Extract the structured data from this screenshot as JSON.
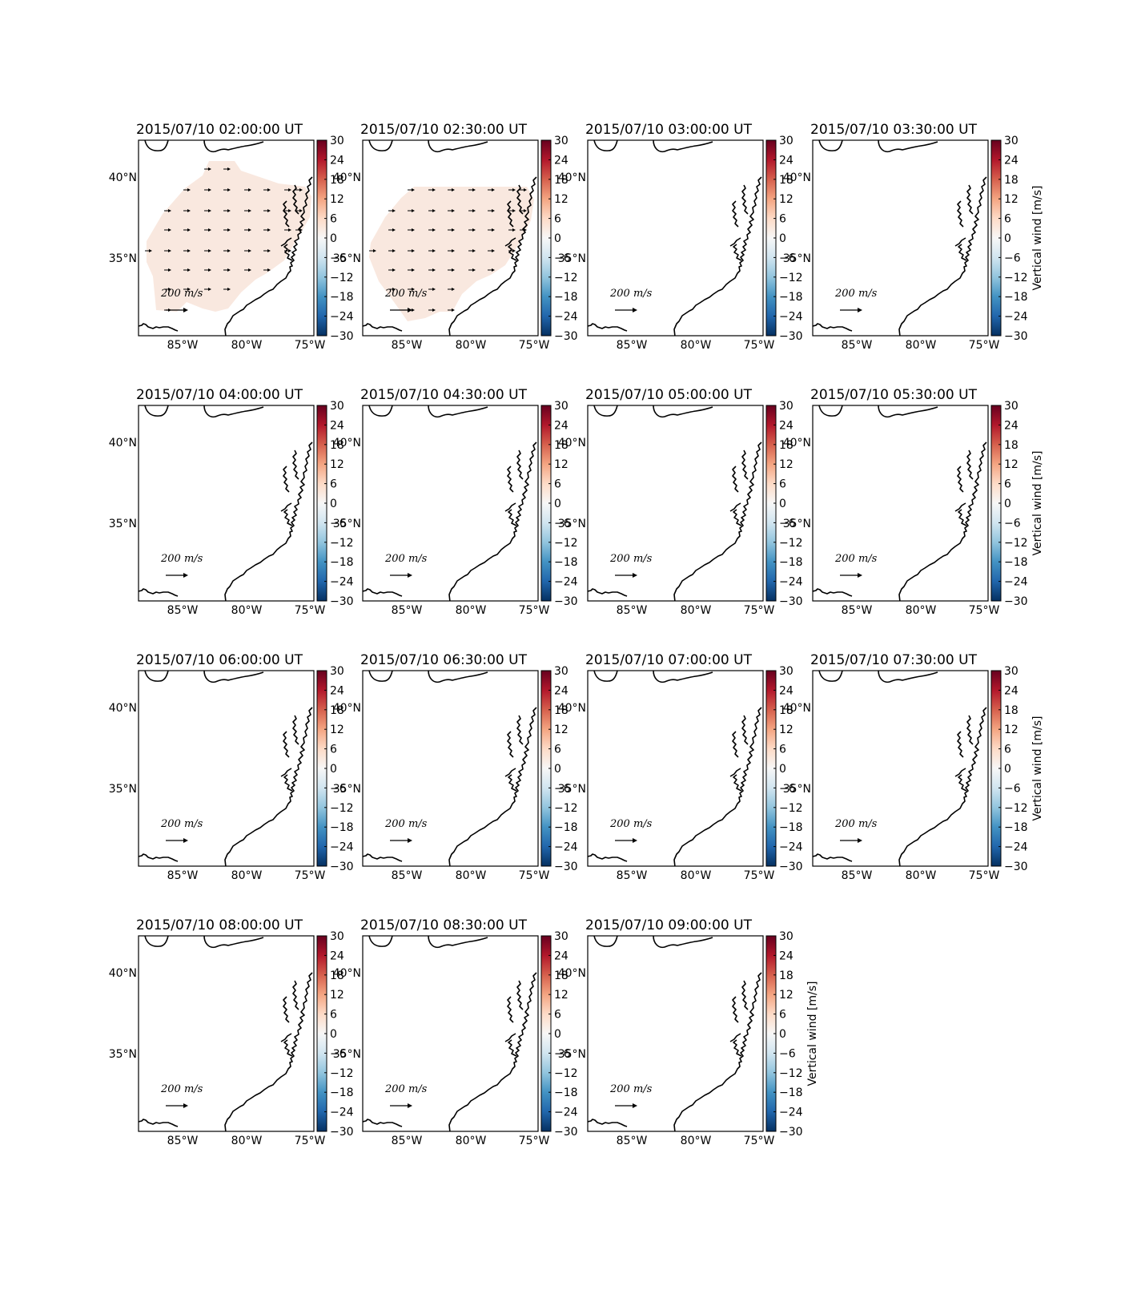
{
  "figure": {
    "colorbar_label": "Vertical wind [m/s]",
    "colorbar_ticks": [
      "30",
      "24",
      "18",
      "12",
      "6",
      "0",
      "−6",
      "−12",
      "−18",
      "−24",
      "−30"
    ],
    "colormap": [
      "#67001f",
      "#b2182b",
      "#d6604d",
      "#f4a582",
      "#fddbc7",
      "#f7f7f7",
      "#d1e5f0",
      "#92c5de",
      "#4393c3",
      "#2166ac",
      "#053061"
    ],
    "lon_labels": [
      "85°W",
      "80°W",
      "75°W"
    ],
    "lat_labels": [
      "40°N",
      "35°N"
    ],
    "scale_label": "200 m/s",
    "field_color": "#f9e8df"
  },
  "panels": [
    {
      "title": "2015/07/10 02:00:00 UT",
      "has_field": true,
      "field": "a"
    },
    {
      "title": "2015/07/10 02:30:00 UT",
      "has_field": true,
      "field": "b"
    },
    {
      "title": "2015/07/10 03:00:00 UT",
      "has_field": false
    },
    {
      "title": "2015/07/10 03:30:00 UT",
      "has_field": false
    },
    {
      "title": "2015/07/10 04:00:00 UT",
      "has_field": false
    },
    {
      "title": "2015/07/10 04:30:00 UT",
      "has_field": false
    },
    {
      "title": "2015/07/10 05:00:00 UT",
      "has_field": false
    },
    {
      "title": "2015/07/10 05:30:00 UT",
      "has_field": false
    },
    {
      "title": "2015/07/10 06:00:00 UT",
      "has_field": false
    },
    {
      "title": "2015/07/10 06:30:00 UT",
      "has_field": false
    },
    {
      "title": "2015/07/10 07:00:00 UT",
      "has_field": false
    },
    {
      "title": "2015/07/10 07:30:00 UT",
      "has_field": false
    },
    {
      "title": "2015/07/10 08:00:00 UT",
      "has_field": false
    },
    {
      "title": "2015/07/10 08:30:00 UT",
      "has_field": false
    },
    {
      "title": "2015/07/10 09:00:00 UT",
      "has_field": false
    }
  ]
}
